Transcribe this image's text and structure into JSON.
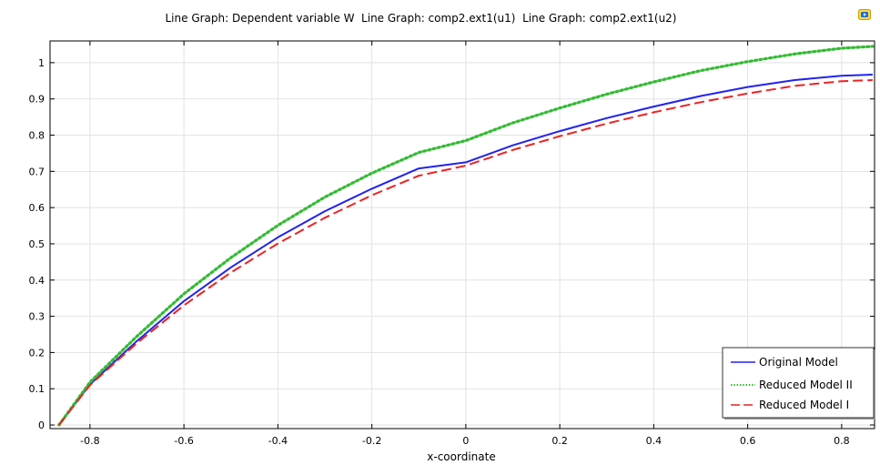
{
  "title": "Line Graph: Dependent variable W  Line Graph: comp2.ext1(u1)  Line Graph: comp2.ext1(u2)",
  "export_icon": "export-image-icon",
  "chart_data": {
    "type": "line",
    "title": "Line Graph: Dependent variable W  Line Graph: comp2.ext1(u1)  Line Graph: comp2.ext1(u2)",
    "xlabel": "x-coordinate",
    "ylabel": "",
    "xlim": [
      -0.885,
      0.87
    ],
    "ylim": [
      -0.01,
      1.06
    ],
    "xticks": [
      -0.8,
      -0.6,
      -0.4,
      -0.2,
      0,
      0.2,
      0.4,
      0.6,
      0.8
    ],
    "xtick_labels": [
      "-0.8",
      "-0.6",
      "-0.4",
      "-0.2",
      "0",
      "0.2",
      "0.4",
      "0.6",
      "0.8"
    ],
    "yticks": [
      0,
      0.1,
      0.2,
      0.3,
      0.4,
      0.5,
      0.6,
      0.7,
      0.8,
      0.9,
      1
    ],
    "ytick_labels": [
      "0",
      "0.1",
      "0.2",
      "0.3",
      "0.4",
      "0.5",
      "0.6",
      "0.7",
      "0.8",
      "0.9",
      "1"
    ],
    "grid": true,
    "legend_position": "bottom-right",
    "x": [
      -0.866,
      -0.8,
      -0.7,
      -0.6,
      -0.5,
      -0.4,
      -0.3,
      -0.2,
      -0.1,
      0,
      0.1,
      0.2,
      0.3,
      0.4,
      0.5,
      0.6,
      0.7,
      0.8,
      0.866
    ],
    "series": [
      {
        "name": "Original Model",
        "color": "#2222ee",
        "dash": "solid",
        "values": [
          0,
          0.112,
          0.232,
          0.342,
          0.435,
          0.518,
          0.59,
          0.652,
          0.708,
          0.725,
          0.772,
          0.811,
          0.847,
          0.879,
          0.908,
          0.933,
          0.952,
          0.964,
          0.967
        ]
      },
      {
        "name": "Reduced Model II",
        "color": "#33bb33",
        "dash": "dotted",
        "values": [
          0,
          0.118,
          0.245,
          0.362,
          0.462,
          0.551,
          0.629,
          0.695,
          0.752,
          0.785,
          0.834,
          0.875,
          0.913,
          0.947,
          0.978,
          1.003,
          1.024,
          1.04,
          1.045
        ]
      },
      {
        "name": "Reduced Model I",
        "color": "#ee2222",
        "dash": "dashed",
        "values": [
          0,
          0.11,
          0.226,
          0.33,
          0.421,
          0.501,
          0.572,
          0.634,
          0.688,
          0.716,
          0.759,
          0.797,
          0.832,
          0.863,
          0.891,
          0.915,
          0.936,
          0.949,
          0.952
        ]
      }
    ]
  }
}
